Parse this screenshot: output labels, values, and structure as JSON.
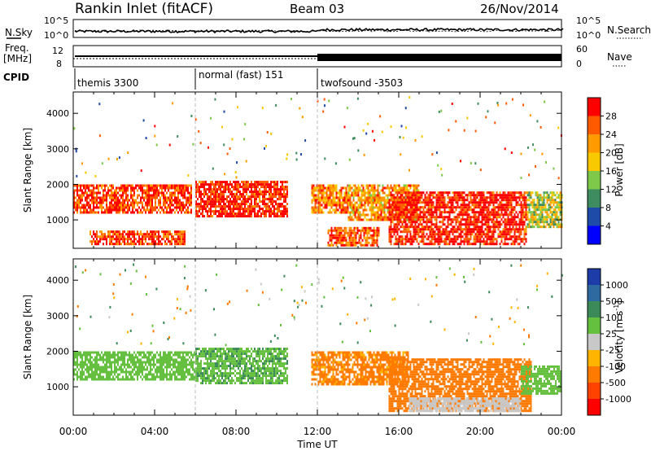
{
  "header": {
    "station": "Rankin Inlet (fitACF)",
    "beam": "Beam 03",
    "date": "26/Nov/2014"
  },
  "top_panels": {
    "nsky_label": "N.Sky",
    "nsearch_label": "N.Search",
    "nsky_ticks": [
      "10^5",
      "10^0"
    ],
    "nsearch_ticks": [
      "10^5",
      "10^0"
    ],
    "freq_label_1": "Freq.",
    "freq_label_2": "[MHz]",
    "freq_ticks": [
      "12",
      "8"
    ],
    "nave_label": "Nave",
    "nave_ticks": [
      "60",
      "0"
    ],
    "cpid_label": "CPID"
  },
  "cpid_segments": [
    {
      "label": "themis 3300",
      "start_h": 0,
      "end_h": 6
    },
    {
      "label": "normal (fast) 151",
      "start_h": 6,
      "end_h": 12
    },
    {
      "label": "twofsound -3503",
      "start_h": 12,
      "end_h": 24
    }
  ],
  "x_axis": {
    "label": "Time UT",
    "ticks": [
      "00:00",
      "04:00",
      "08:00",
      "12:00",
      "16:00",
      "20:00",
      "00:00"
    ]
  },
  "power_colorbar": {
    "label": "Power [dB]",
    "ticks": [
      "28",
      "24",
      "20",
      "16",
      "12",
      "8",
      "4"
    ],
    "colors": [
      "#ff0000",
      "#ff5a00",
      "#ff9a00",
      "#f8c800",
      "#7ec84a",
      "#3e8c60",
      "#1e4aa8",
      "#0000ff"
    ]
  },
  "velocity_colorbar": {
    "label": "Velocity [m s",
    "label_sup": "-1",
    "label_end": "]",
    "ticks": [
      "1000",
      "500",
      "100",
      "25",
      "-25",
      "-100",
      "-500",
      "-1000"
    ],
    "colors": [
      "#1e3ca8",
      "#2e6aa0",
      "#3c8a5a",
      "#66c040",
      "#c8c8c8",
      "#ffb400",
      "#ff7a00",
      "#ff4200",
      "#ff0000"
    ]
  },
  "chart_data": [
    {
      "type": "line",
      "panel": "N.Sky / N.Search",
      "x_range_hours": [
        0,
        24
      ],
      "note_scale": "log",
      "y_ticks": [
        "10^0",
        "10^5"
      ]
    },
    {
      "type": "line",
      "panel": "Freq. / Nave",
      "x_range_hours": [
        0,
        24
      ],
      "y_ticks": [
        "8",
        "12"
      ]
    },
    {
      "type": "heatmap",
      "panel": "Power",
      "ylabel": "Slant Range [km]",
      "xlabel": "Time UT",
      "y_ticks": [
        1000,
        2000,
        3000,
        4000
      ],
      "x_ticks": [
        "00:00",
        "04:00",
        "08:00",
        "12:00",
        "16:00",
        "20:00",
        "00:00"
      ],
      "xlim_hours": [
        0,
        24
      ],
      "ylim_km": [
        200,
        4600
      ],
      "colorbar_unit": "Power [dB]",
      "regions": [
        {
          "start_h": 0.0,
          "end_h": 5.8,
          "range_min_km": 1200,
          "range_max_km": 2000,
          "level_db": 26
        },
        {
          "start_h": 6.0,
          "end_h": 10.5,
          "range_min_km": 1100,
          "range_max_km": 2100,
          "level_db": 28
        },
        {
          "start_h": 11.7,
          "end_h": 13.5,
          "range_min_km": 1200,
          "range_max_km": 2000,
          "level_db": 22
        },
        {
          "start_h": 13.5,
          "end_h": 17.0,
          "range_min_km": 1000,
          "range_max_km": 2000,
          "level_db": 20
        },
        {
          "start_h": 15.5,
          "end_h": 22.3,
          "range_min_km": 300,
          "range_max_km": 1800,
          "level_db": 28
        },
        {
          "start_h": 22.3,
          "end_h": 24.0,
          "range_min_km": 800,
          "range_max_km": 1800,
          "level_db": 14
        },
        {
          "start_h": 0.8,
          "end_h": 5.5,
          "range_min_km": 300,
          "range_max_km": 700,
          "level_db": 26
        },
        {
          "start_h": 12.5,
          "end_h": 15.0,
          "range_min_km": 250,
          "range_max_km": 800,
          "level_db": 24
        }
      ]
    },
    {
      "type": "heatmap",
      "panel": "Velocity",
      "ylabel": "Slant Range [km]",
      "xlabel": "Time UT",
      "y_ticks": [
        1000,
        2000,
        3000,
        4000
      ],
      "x_ticks": [
        "00:00",
        "04:00",
        "08:00",
        "12:00",
        "16:00",
        "20:00",
        "00:00"
      ],
      "xlim_hours": [
        0,
        24
      ],
      "ylim_km": [
        200,
        4600
      ],
      "colorbar_unit": "m s-1",
      "regions": [
        {
          "start_h": 0.0,
          "end_h": 6.0,
          "range_min_km": 1200,
          "range_max_km": 2000,
          "velocity_ms": 60
        },
        {
          "start_h": 6.0,
          "end_h": 10.5,
          "range_min_km": 1100,
          "range_max_km": 2100,
          "velocity_ms": 80
        },
        {
          "start_h": 11.7,
          "end_h": 16.5,
          "range_min_km": 1100,
          "range_max_km": 2000,
          "velocity_ms": -150
        },
        {
          "start_h": 15.5,
          "end_h": 22.5,
          "range_min_km": 300,
          "range_max_km": 1800,
          "velocity_ms": -300
        },
        {
          "start_h": 22.0,
          "end_h": 24.0,
          "range_min_km": 800,
          "range_max_km": 1600,
          "velocity_ms": 60
        },
        {
          "start_h": 16.5,
          "end_h": 22.0,
          "range_min_km": 300,
          "range_max_km": 700,
          "velocity_ms": 0
        }
      ]
    }
  ]
}
